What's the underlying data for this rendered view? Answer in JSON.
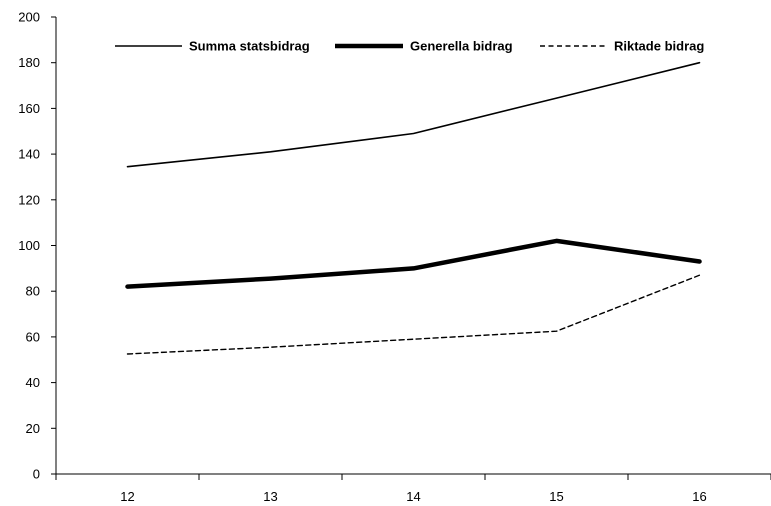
{
  "chart_data": {
    "type": "line",
    "title": "",
    "xlabel": "",
    "ylabel": "",
    "categories": [
      "12",
      "13",
      "14",
      "15",
      "16"
    ],
    "ylim": [
      0,
      200
    ],
    "yticks": [
      0,
      20,
      40,
      60,
      80,
      100,
      120,
      140,
      160,
      180,
      200
    ],
    "grid": false,
    "legend_position": "top",
    "series": [
      {
        "name": "Summa statsbidrag",
        "values": [
          134.5,
          141,
          149,
          164.5,
          180
        ],
        "color": "#000000",
        "style": "solid-thin"
      },
      {
        "name": "Generella bidrag",
        "values": [
          82,
          85.5,
          90,
          102,
          93
        ],
        "color": "#000000",
        "style": "solid-thick"
      },
      {
        "name": "Riktade bidrag",
        "values": [
          52.5,
          55.5,
          59,
          62.5,
          87
        ],
        "color": "#000000",
        "style": "dashed"
      }
    ]
  }
}
